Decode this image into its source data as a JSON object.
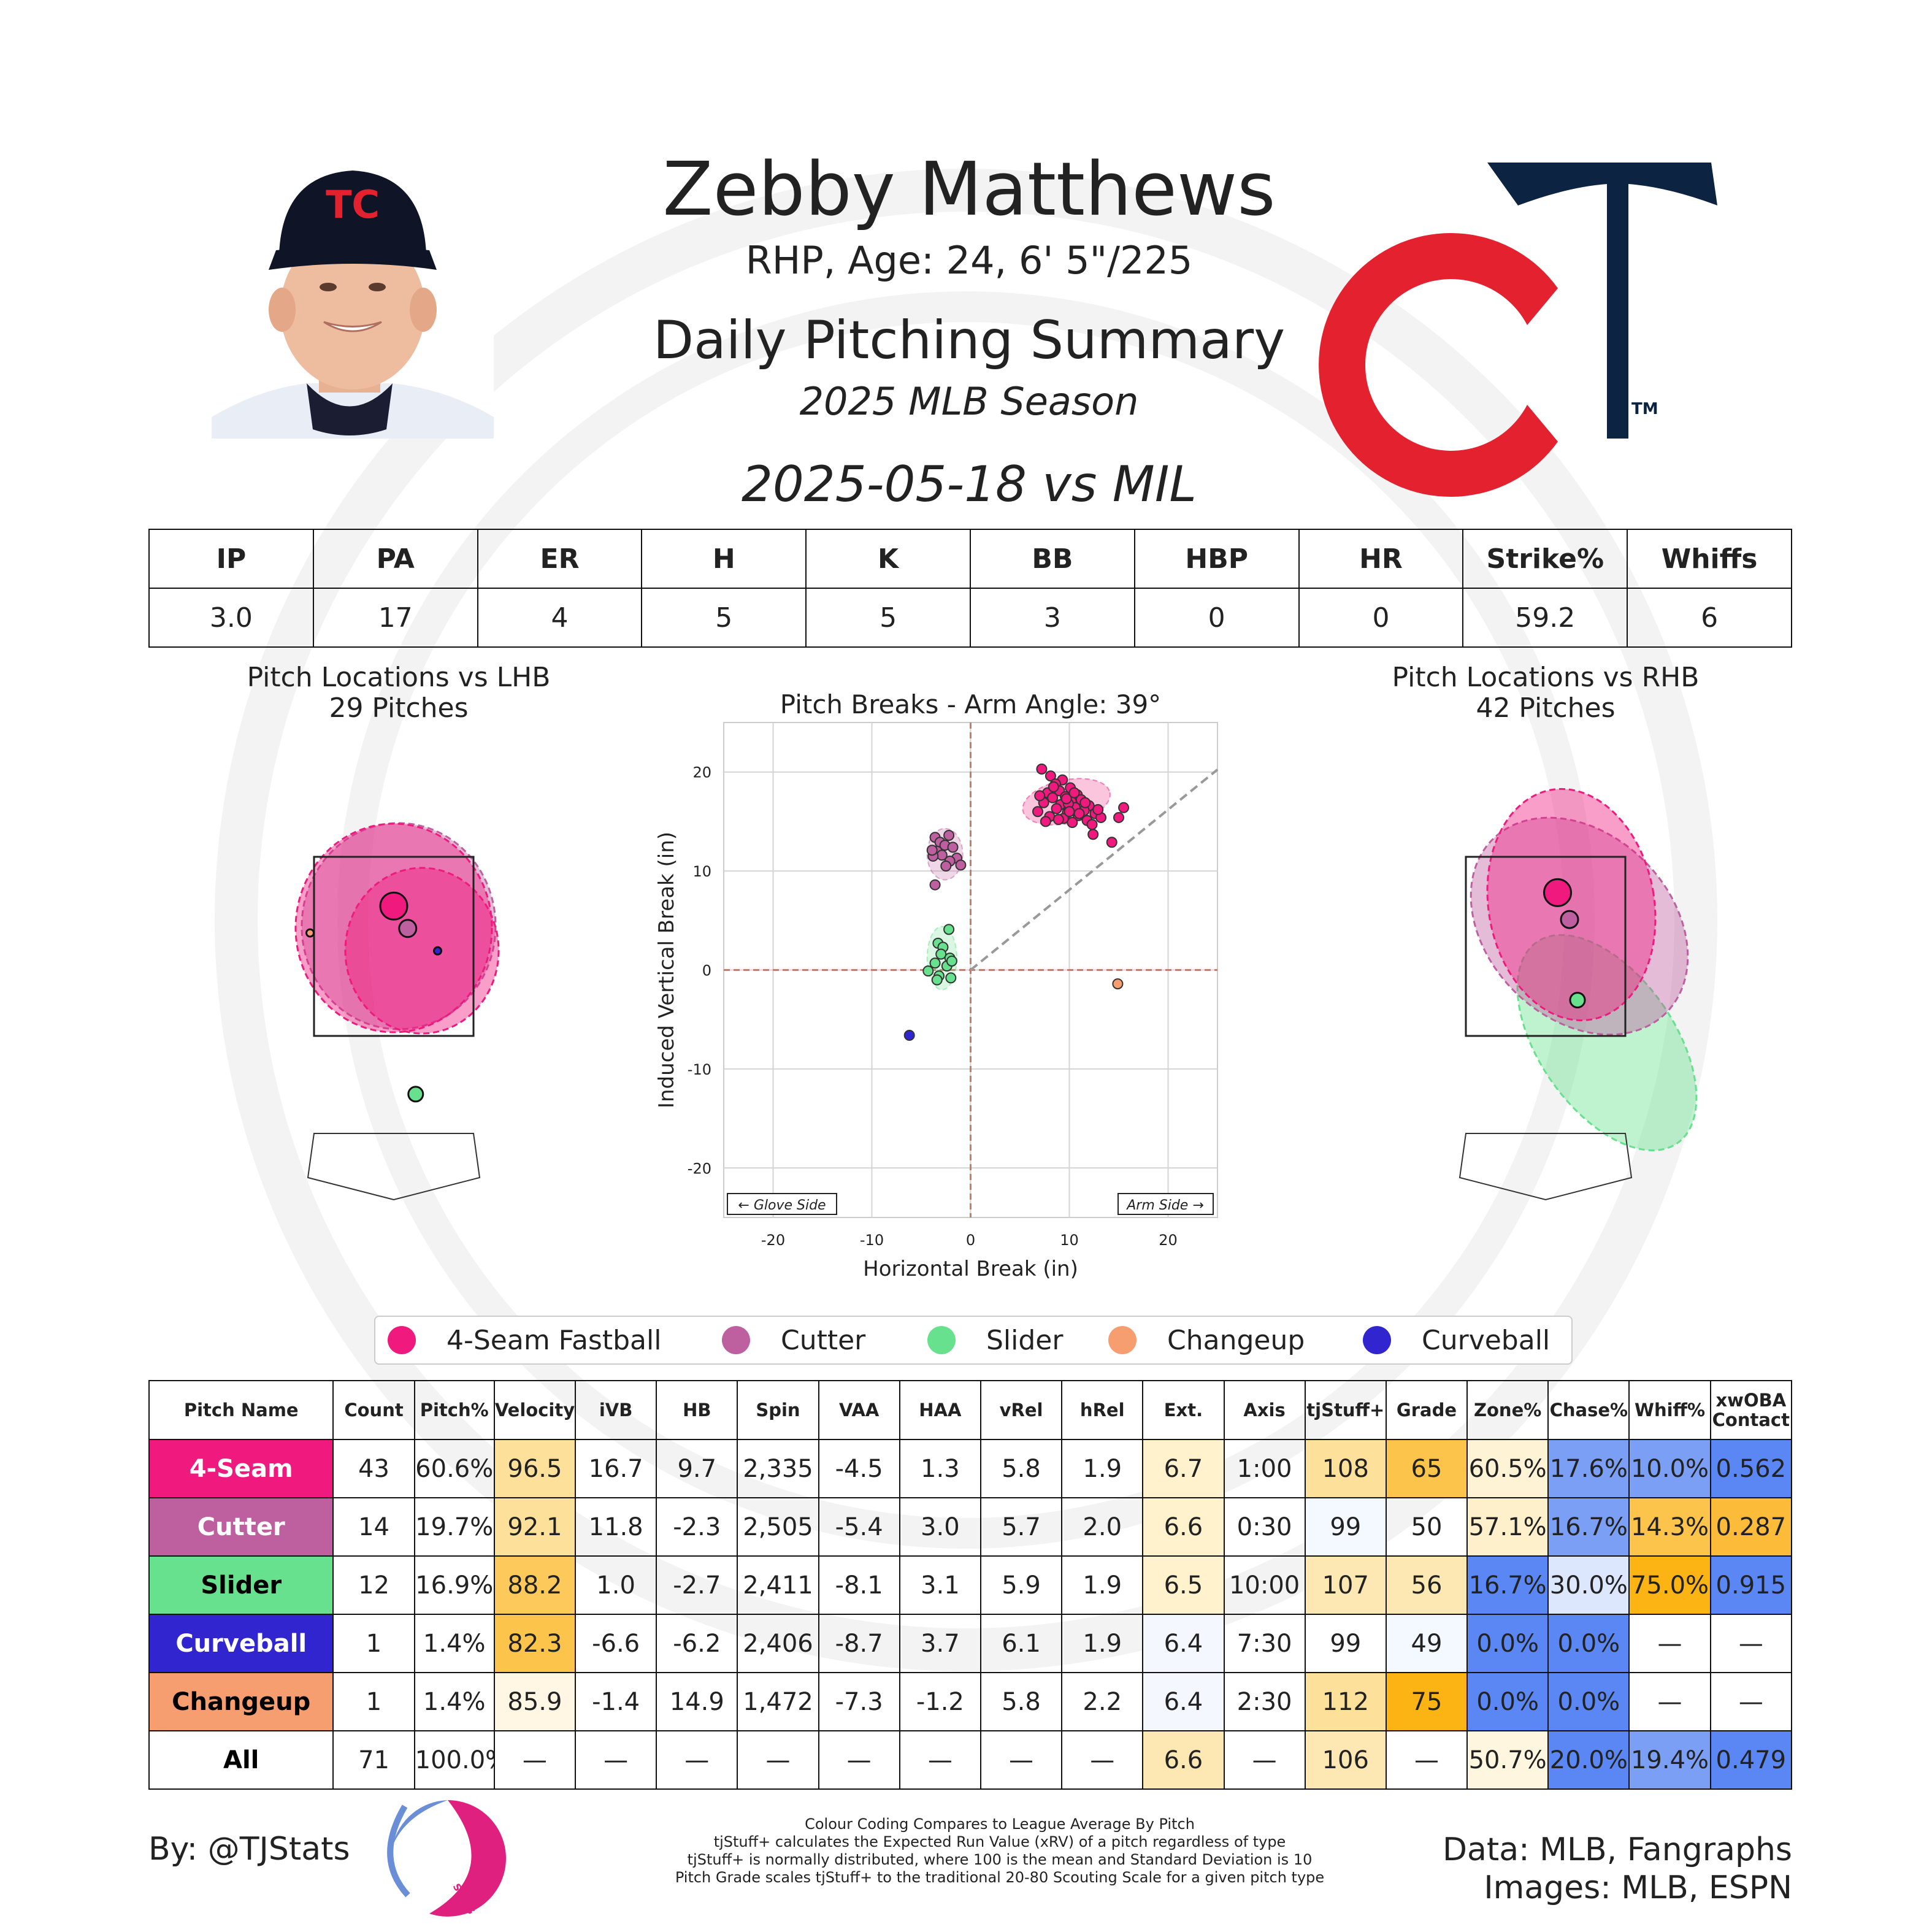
{
  "header": {
    "name": "Zebby Matthews",
    "subline": "RHP, Age: 24, 6' 5\"/225",
    "title": "Daily Pitching Summary",
    "season": "2025 MLB Season",
    "game": "2025-05-18 vs MIL"
  },
  "logo": {
    "team_mark": "TC",
    "tm": "TM",
    "colors": {
      "navy": "#0c2341",
      "red": "#e4222f"
    }
  },
  "stat_line": {
    "headers": [
      "IP",
      "PA",
      "ER",
      "H",
      "K",
      "BB",
      "HBP",
      "HR",
      "Strike%",
      "Whiffs"
    ],
    "values": [
      "3.0",
      "17",
      "4",
      "5",
      "5",
      "3",
      "0",
      "0",
      "59.2",
      "6"
    ]
  },
  "plots": {
    "lhb_title": "Pitch Locations vs LHB",
    "lhb_count": "29 Pitches",
    "rhb_title": "Pitch Locations vs RHB",
    "rhb_count": "42 Pitches"
  },
  "pitch_colors": {
    "4-Seam Fastball": "#f0197d",
    "Cutter": "#be5fa0",
    "Slider": "#67e18d",
    "Changeup": "#f79e70",
    "Curveball": "#3025ce"
  },
  "legend": [
    "4-Seam Fastball",
    "Cutter",
    "Slider",
    "Changeup",
    "Curveball"
  ],
  "chart_data": [
    {
      "type": "scatter",
      "title": "Pitch Breaks - Arm Angle: 39°",
      "xlabel": "Horizontal Break (in)",
      "ylabel": "Induced Vertical Break (in)",
      "xlim": [
        -25,
        25
      ],
      "ylim": [
        -25,
        25
      ],
      "xticks": [
        -20,
        -10,
        0,
        10,
        20
      ],
      "yticks": [
        -20,
        -10,
        0,
        10,
        20
      ],
      "grid": true,
      "annotations": [
        "← Glove Side",
        "Arm Side →"
      ],
      "arm_angle_deg": 39,
      "series": [
        {
          "name": "4-Seam Fastball",
          "points": [
            [
              7.2,
              20.3
            ],
            [
              8.1,
              19.6
            ],
            [
              9.3,
              19.2
            ],
            [
              8.6,
              18.8
            ],
            [
              10.1,
              18.4
            ],
            [
              9.0,
              18.1
            ],
            [
              7.8,
              17.9
            ],
            [
              10.8,
              17.7
            ],
            [
              9.6,
              17.5
            ],
            [
              8.3,
              17.4
            ],
            [
              11.2,
              17.2
            ],
            [
              10.2,
              17.0
            ],
            [
              7.4,
              16.9
            ],
            [
              9.1,
              16.7
            ],
            [
              12.0,
              16.6
            ],
            [
              10.6,
              16.4
            ],
            [
              8.7,
              16.3
            ],
            [
              11.5,
              16.1
            ],
            [
              6.8,
              16.0
            ],
            [
              9.8,
              15.9
            ],
            [
              12.6,
              15.8
            ],
            [
              10.9,
              15.6
            ],
            [
              8.0,
              15.5
            ],
            [
              13.2,
              15.4
            ],
            [
              9.4,
              15.3
            ],
            [
              11.8,
              15.1
            ],
            [
              7.6,
              15.0
            ],
            [
              10.3,
              14.9
            ],
            [
              12.3,
              14.7
            ],
            [
              8.9,
              15.2
            ],
            [
              11.0,
              15.8
            ],
            [
              9.9,
              16.8
            ],
            [
              7.0,
              17.6
            ],
            [
              12.9,
              16.2
            ],
            [
              10.5,
              17.9
            ],
            [
              8.4,
              18.5
            ],
            [
              11.6,
              16.9
            ],
            [
              15.5,
              16.4
            ],
            [
              15.0,
              15.4
            ],
            [
              14.3,
              12.9
            ],
            [
              12.4,
              13.7
            ],
            [
              9.7,
              17.3
            ],
            [
              10.0,
              16.0
            ]
          ]
        },
        {
          "name": "Cutter",
          "points": [
            [
              -3.6,
              13.4
            ],
            [
              -2.2,
              13.6
            ],
            [
              -3.1,
              12.9
            ],
            [
              -2.6,
              12.6
            ],
            [
              -1.8,
              12.4
            ],
            [
              -3.4,
              12.0
            ],
            [
              -2.9,
              11.6
            ],
            [
              -1.4,
              11.3
            ],
            [
              -3.8,
              11.5
            ],
            [
              -2.1,
              11.0
            ],
            [
              -2.5,
              10.5
            ],
            [
              -1.0,
              10.6
            ],
            [
              -3.6,
              8.6
            ],
            [
              -3.9,
              12.1
            ]
          ]
        },
        {
          "name": "Slider",
          "points": [
            [
              -2.2,
              4.1
            ],
            [
              -3.3,
              2.7
            ],
            [
              -2.8,
              2.3
            ],
            [
              -3.0,
              1.6
            ],
            [
              -2.1,
              1.2
            ],
            [
              -3.6,
              0.7
            ],
            [
              -2.4,
              0.4
            ],
            [
              -1.9,
              0.9
            ],
            [
              -4.3,
              -0.1
            ],
            [
              -3.2,
              -0.6
            ],
            [
              -2.0,
              -0.8
            ],
            [
              -3.4,
              -1.0
            ]
          ]
        },
        {
          "name": "Changeup",
          "points": [
            [
              14.9,
              -1.4
            ]
          ]
        },
        {
          "name": "Curveball",
          "points": [
            [
              -6.2,
              -6.6
            ]
          ]
        }
      ]
    },
    {
      "type": "scatter",
      "title": "Pitch Locations vs LHB",
      "subtitle": "29 Pitches",
      "series": [
        {
          "name": "4-Seam Fastball",
          "points": [
            [
              0.0,
              2.95
            ]
          ]
        },
        {
          "name": "Cutter",
          "points": [
            [
              0.35,
              2.7
            ]
          ]
        },
        {
          "name": "Slider",
          "points": [
            [
              0.55,
              0.85
            ]
          ]
        },
        {
          "name": "Changeup",
          "points": [
            [
              -2.1,
              2.65
            ]
          ]
        },
        {
          "name": "Curveball",
          "points": [
            [
              1.1,
              2.45
            ]
          ]
        }
      ]
    },
    {
      "type": "scatter",
      "title": "Pitch Locations vs RHB",
      "subtitle": "42 Pitches",
      "series": [
        {
          "name": "4-Seam Fastball",
          "points": [
            [
              0.3,
              3.1
            ]
          ]
        },
        {
          "name": "Cutter",
          "points": [
            [
              0.6,
              2.8
            ]
          ]
        },
        {
          "name": "Slider",
          "points": [
            [
              0.8,
              1.9
            ]
          ]
        }
      ]
    }
  ],
  "pitch_table": {
    "headers": [
      "Pitch Name",
      "Count",
      "Pitch%",
      "Velocity",
      "iVB",
      "HB",
      "Spin",
      "VAA",
      "HAA",
      "vRel",
      "hRel",
      "Ext.",
      "Axis",
      "tjStuff+",
      "Grade",
      "Zone%",
      "Chase%",
      "Whiff%",
      "xwOBA\nContact"
    ],
    "rows": [
      {
        "name": "4-Seam",
        "color": "#f0197d",
        "text_color": "#ffffff",
        "cells": [
          "43",
          "60.6%",
          "96.5",
          "16.7",
          "9.7",
          "2,335",
          "-4.5",
          "1.3",
          "5.8",
          "1.9",
          "6.7",
          "1:00",
          "108",
          "65",
          "60.5%",
          "17.6%",
          "10.0%",
          "0.562"
        ]
      },
      {
        "name": "Cutter",
        "color": "#be5fa0",
        "text_color": "#ffffff",
        "cells": [
          "14",
          "19.7%",
          "92.1",
          "11.8",
          "-2.3",
          "2,505",
          "-5.4",
          "3.0",
          "5.7",
          "2.0",
          "6.6",
          "0:30",
          "99",
          "50",
          "57.1%",
          "16.7%",
          "14.3%",
          "0.287"
        ]
      },
      {
        "name": "Slider",
        "color": "#67e18d",
        "text_color": "#000000",
        "cells": [
          "12",
          "16.9%",
          "88.2",
          "1.0",
          "-2.7",
          "2,411",
          "-8.1",
          "3.1",
          "5.9",
          "1.9",
          "6.5",
          "10:00",
          "107",
          "56",
          "16.7%",
          "30.0%",
          "75.0%",
          "0.915"
        ]
      },
      {
        "name": "Curveball",
        "color": "#3025ce",
        "text_color": "#ffffff",
        "cells": [
          "1",
          "1.4%",
          "82.3",
          "-6.6",
          "-6.2",
          "2,406",
          "-8.7",
          "3.7",
          "6.1",
          "1.9",
          "6.4",
          "7:30",
          "99",
          "49",
          "0.0%",
          "0.0%",
          "—",
          "—"
        ]
      },
      {
        "name": "Changeup",
        "color": "#f79e70",
        "text_color": "#000000",
        "cells": [
          "1",
          "1.4%",
          "85.9",
          "-1.4",
          "14.9",
          "1,472",
          "-7.3",
          "-1.2",
          "5.8",
          "2.2",
          "6.4",
          "2:30",
          "112",
          "75",
          "0.0%",
          "0.0%",
          "—",
          "—"
        ]
      },
      {
        "name": "All",
        "color": "#ffffff",
        "text_color": "#000000",
        "cells": [
          "71",
          "100.0%",
          "—",
          "—",
          "—",
          "—",
          "—",
          "—",
          "—",
          "—",
          "6.6",
          "—",
          "106",
          "—",
          "50.7%",
          "20.0%",
          "19.4%",
          "0.479"
        ]
      }
    ],
    "cell_colors": [
      [
        "",
        "",
        "#fde19a",
        "",
        "",
        "",
        "",
        "",
        "",
        "",
        "#fff2cc",
        "",
        "#fde19a",
        "#fcc44a",
        "#fff3d6",
        "#7b9ff5",
        "#7b9ff5",
        "#5a87f3"
      ],
      [
        "",
        "",
        "#fde19a",
        "",
        "",
        "",
        "",
        "",
        "",
        "",
        "#fff2cc",
        "",
        "#f4f8ff",
        "",
        "#fff0cc",
        "#7b9ff5",
        "#fcc44a",
        "#fcbc3a"
      ],
      [
        "",
        "",
        "#fcc95a",
        "",
        "",
        "",
        "",
        "",
        "",
        "",
        "#fff2cc",
        "",
        "#fde7b3",
        "#fde7b3",
        "#5a87f3",
        "#dce6fd",
        "#fcb415",
        "#5a87f3"
      ],
      [
        "",
        "",
        "#fcc44a",
        "",
        "",
        "",
        "",
        "",
        "",
        "",
        "#f4f7fe",
        "",
        "",
        "#f4f8ff",
        "#5a87f3",
        "#5a87f3",
        "",
        ""
      ],
      [
        "",
        "",
        "#fff7e3",
        "",
        "",
        "",
        "",
        "",
        "",
        "",
        "#f4f7fe",
        "",
        "#fde19a",
        "#fcb415",
        "#5a87f3",
        "#5a87f3",
        "",
        ""
      ],
      [
        "",
        "",
        "",
        "",
        "",
        "",
        "",
        "",
        "",
        "",
        "#fde7b3",
        "",
        "#fde7b3",
        "",
        "#fff6e0",
        "#5a87f3",
        "#7b9ff5",
        "#5a87f3"
      ]
    ]
  },
  "footer": {
    "byline": "By: @TJStats",
    "logo_text": "STATS",
    "notes": [
      "Colour Coding Compares to League Average By Pitch",
      "tjStuff+ calculates the Expected Run Value (xRV) of a pitch regardless of type",
      "tjStuff+ is normally distributed, where 100 is the mean and Standard Deviation is 10",
      "Pitch Grade scales tjStuff+ to the traditional 20-80 Scouting Scale for a given pitch type"
    ],
    "credits_1": "Data: MLB, Fangraphs",
    "credits_2": "Images: MLB, ESPN"
  }
}
